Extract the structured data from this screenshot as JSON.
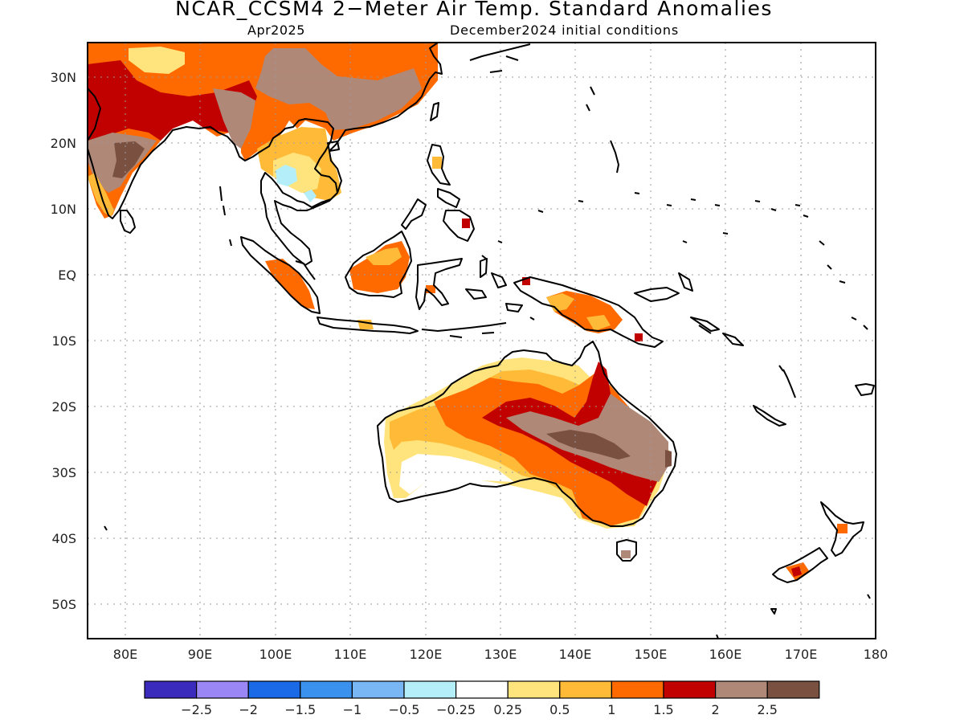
{
  "title": "NCAR_CCSM4 2−Meter Air Temp. Standard Anomalies",
  "subtitle_left": "Apr2025",
  "subtitle_right": "December2024 initial conditions",
  "lat_labels": [
    "30N",
    "20N",
    "10N",
    "EQ",
    "10S",
    "20S",
    "30S",
    "40S",
    "50S"
  ],
  "lon_labels": [
    "80E",
    "90E",
    "100E",
    "110E",
    "120E",
    "130E",
    "140E",
    "150E",
    "160E",
    "170E",
    "180"
  ],
  "colorbar": {
    "colors": [
      "#3b2bbd",
      "#9a87f5",
      "#1a6ae8",
      "#3a92ee",
      "#78b6f4",
      "#b4eef8",
      "#ffffff",
      "#ffe47e",
      "#ffbb38",
      "#ff6a00",
      "#c10000",
      "#b08878",
      "#7a5040"
    ],
    "labels": [
      "−2.5",
      "−2",
      "−1.5",
      "−1",
      "−0.5",
      "−0.25",
      "0.25",
      "0.5",
      "1",
      "1.5",
      "2",
      "2.5"
    ]
  },
  "map_extent": {
    "lon_min": 75,
    "lon_max": 180,
    "lat_min": -55,
    "lat_max": 35
  }
}
